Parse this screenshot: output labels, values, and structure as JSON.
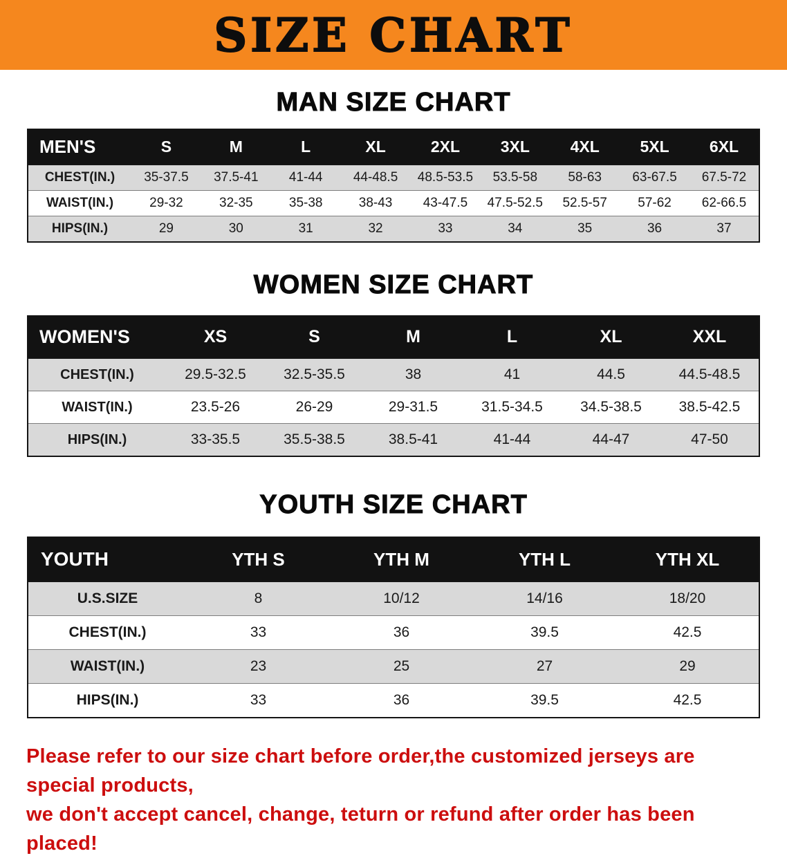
{
  "banner": {
    "title": "SIZE CHART",
    "bg_color": "#F5871E",
    "text_color": "#0D0D0D"
  },
  "sections": [
    {
      "heading": "MAN SIZE CHART",
      "table": {
        "header": [
          "MEN'S",
          "S",
          "M",
          "L",
          "XL",
          "2XL",
          "3XL",
          "4XL",
          "5XL",
          "6XL"
        ],
        "rows": [
          {
            "label": "CHEST(IN.)",
            "values": [
              "35-37.5",
              "37.5-41",
              "41-44",
              "44-48.5",
              "48.5-53.5",
              "53.5-58",
              "58-63",
              "63-67.5",
              "67.5-72"
            ]
          },
          {
            "label": "WAIST(IN.)",
            "values": [
              "29-32",
              "32-35",
              "35-38",
              "38-43",
              "43-47.5",
              "47.5-52.5",
              "52.5-57",
              "57-62",
              "62-66.5"
            ]
          },
          {
            "label": "HIPS(IN.)",
            "values": [
              "29",
              "30",
              "31",
              "32",
              "33",
              "34",
              "35",
              "36",
              "37"
            ]
          }
        ]
      }
    },
    {
      "heading": "WOMEN SIZE CHART",
      "table": {
        "header": [
          "WOMEN'S",
          "XS",
          "S",
          "M",
          "L",
          "XL",
          "XXL"
        ],
        "rows": [
          {
            "label": "CHEST(IN.)",
            "values": [
              "29.5-32.5",
              "32.5-35.5",
              "38",
              "41",
              "44.5",
              "44.5-48.5"
            ]
          },
          {
            "label": "WAIST(IN.)",
            "values": [
              "23.5-26",
              "26-29",
              "29-31.5",
              "31.5-34.5",
              "34.5-38.5",
              "38.5-42.5"
            ]
          },
          {
            "label": "HIPS(IN.)",
            "values": [
              "33-35.5",
              "35.5-38.5",
              "38.5-41",
              "41-44",
              "44-47",
              "47-50"
            ]
          }
        ]
      }
    },
    {
      "heading": "YOUTH SIZE CHART",
      "table": {
        "header": [
          "YOUTH",
          "YTH S",
          "YTH M",
          "YTH L",
          "YTH XL"
        ],
        "rows": [
          {
            "label": "U.S.SIZE",
            "values": [
              "8",
              "10/12",
              "14/16",
              "18/20"
            ]
          },
          {
            "label": "CHEST(IN.)",
            "values": [
              "33",
              "36",
              "39.5",
              "42.5"
            ]
          },
          {
            "label": "WAIST(IN.)",
            "values": [
              "23",
              "25",
              "27",
              "29"
            ]
          },
          {
            "label": "HIPS(IN.)",
            "values": [
              "33",
              "36",
              "39.5",
              "42.5"
            ]
          }
        ]
      }
    }
  ],
  "disclaimer": {
    "line1": "Please refer to our size chart before order,the customized jerseys are special products,",
    "line2": "we don't accept cancel, change, teturn or refund after order has been placed!",
    "color": "#CC0E0E"
  }
}
